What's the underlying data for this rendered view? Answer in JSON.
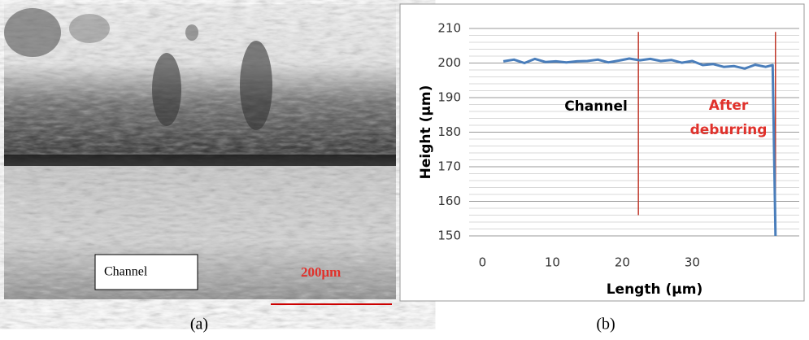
{
  "panel_a": {
    "label": "Channel",
    "scale_bar": "200μm",
    "caption": "(a)"
  },
  "chart_data": {
    "type": "line",
    "caption": "(b)",
    "x_label": "Length (μm)",
    "y_label": "Height (μm)",
    "x": [
      3,
      4.5,
      6,
      7.5,
      9,
      10.5,
      12,
      13.5,
      15,
      16.5,
      18,
      19.5,
      21,
      22.5,
      24,
      25.5,
      27,
      28.5,
      30,
      31.5,
      33,
      34.5,
      36,
      37.5,
      39,
      40.5,
      41.5,
      41.9
    ],
    "values": [
      200.5,
      201,
      200,
      201.2,
      200.3,
      200.5,
      200.2,
      200.5,
      200.6,
      201,
      200.2,
      200.7,
      201.3,
      200.8,
      201.2,
      200.6,
      200.9,
      200.1,
      200.6,
      199.4,
      199.7,
      198.9,
      199.1,
      198.4,
      199.5,
      198.9,
      199.4,
      150
    ],
    "color": "#4a7ebb",
    "xlim": [
      -1.9,
      45.3
    ],
    "ylim": [
      150,
      210
    ],
    "xticks": [
      0,
      10,
      20,
      30
    ],
    "yticks": [
      150,
      160,
      170,
      180,
      190,
      200,
      210
    ],
    "minor_grid_step": 2,
    "grid": true,
    "vlines": [
      22.3,
      41.9
    ],
    "vline_color": "#c0392b",
    "annotations": [
      {
        "lines": [
          "Channel"
        ],
        "color": "#000000"
      },
      {
        "lines": [
          "After",
          "deburring"
        ],
        "color": "#e0312b"
      }
    ]
  }
}
